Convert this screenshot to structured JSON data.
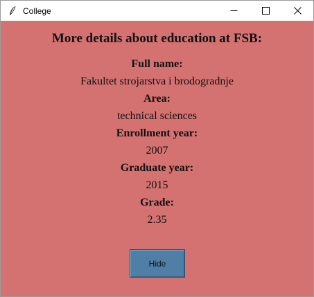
{
  "window": {
    "title": "College",
    "icon": "feather-icon",
    "controls": [
      "minimize-icon",
      "maximize-icon",
      "close-icon"
    ]
  },
  "heading": "More details about education at FSB:",
  "fields": [
    {
      "label": "Full name:",
      "value": "Fakultet strojarstva i brodogradnje"
    },
    {
      "label": "Area:",
      "value": "technical sciences"
    },
    {
      "label": "Enrollment year:",
      "value": "2007"
    },
    {
      "label": "Graduate year:",
      "value": "2015"
    },
    {
      "label": "Grade:",
      "value": "2.35"
    }
  ],
  "hide_button": {
    "label": "Hide"
  },
  "colors": {
    "background": "#d47171",
    "button": "#4f7fa7"
  }
}
